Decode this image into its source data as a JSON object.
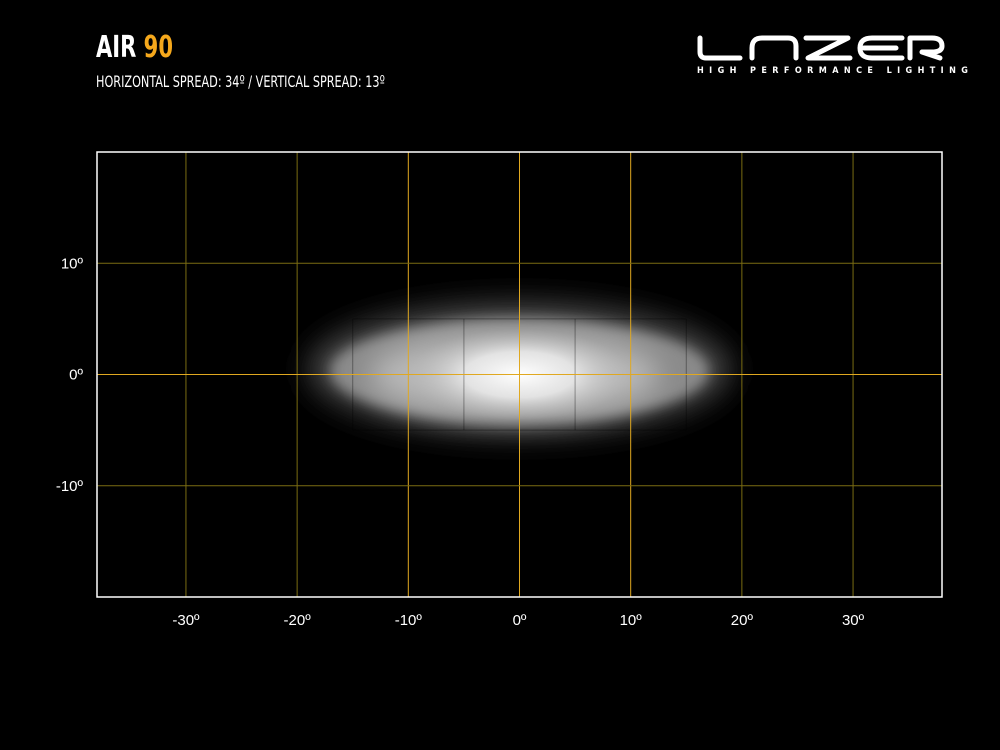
{
  "header": {
    "title_prefix": "AIR",
    "title_model": "90",
    "subtitle": "HORIZONTAL SPREAD: 34º  /  VERTICAL SPREAD: 13º"
  },
  "logo": {
    "brand": "LAZER",
    "tagline": "HIGH PERFORMANCE LIGHTING"
  },
  "colors": {
    "accent": "#f5a81c",
    "grid_major": "#e0a820",
    "grid_minor": "#7a6c12",
    "frame": "#ffffff",
    "background": "#000000"
  },
  "chart_data": {
    "type": "heatmap",
    "title": "AIR 90",
    "subtitle": "HORIZONTAL SPREAD: 34º / VERTICAL SPREAD: 13º",
    "xlim": [
      -38,
      38
    ],
    "ylim": [
      -20,
      20
    ],
    "grid": true,
    "x_ticks": [
      -30,
      -20,
      -10,
      0,
      10,
      20,
      30
    ],
    "x_tick_labels": [
      "-30º",
      "-20º",
      "-10º",
      "0º",
      "10º",
      "20º",
      "30º"
    ],
    "y_ticks": [
      10,
      0,
      -10
    ],
    "y_tick_labels": [
      "10º",
      "0º",
      "-10º"
    ],
    "horizontal_spread_deg": 34,
    "vertical_spread_deg": 13,
    "beam": {
      "center": [
        0,
        0
      ],
      "x_extent": [
        -20,
        20
      ],
      "y_extent": [
        -7,
        8
      ]
    }
  }
}
